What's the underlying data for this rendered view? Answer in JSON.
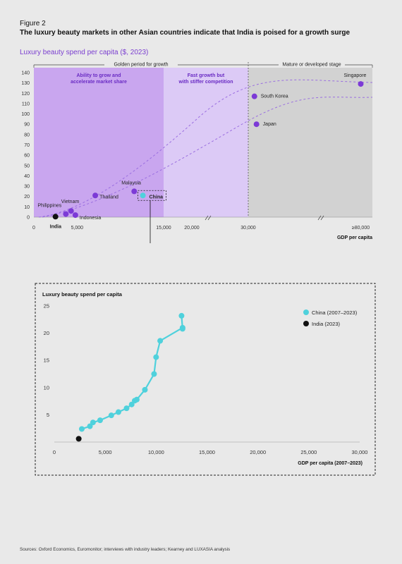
{
  "figure_label": "Figure 2",
  "figure_title": "The luxury beauty markets in other Asian countries indicate that India is poised for a growth surge",
  "chart1_subtitle": "Luxury beauty spend per capita ($, 2023)",
  "source": "Sources: Oxford Economics, Euromonitor; interviews with industry leaders; Kearney and LUXASIA analysis",
  "colors": {
    "purple": "#7c3ad6",
    "zone_dark": "#c9a6ef",
    "zone_light": "#dccaf6",
    "zone_grey": "#d2d2d2",
    "cyan": "#4fd1dc",
    "black": "#111111"
  },
  "chart_data": [
    {
      "type": "scatter",
      "title": "Luxury beauty spend per capita ($, 2023)",
      "xlabel": "GDP per capita",
      "ylabel": "",
      "ylim": [
        0,
        140
      ],
      "x_ticks": [
        "0",
        "5,000",
        "15,000",
        "20,000",
        "30,000",
        "≥80,000"
      ],
      "y_ticks": [
        0,
        10,
        20,
        30,
        40,
        50,
        60,
        70,
        80,
        90,
        100,
        110,
        120,
        130,
        140
      ],
      "zones": [
        {
          "header": "Golden period for growth",
          "label": "Ability to grow and accelerate market share"
        },
        {
          "header": "",
          "label": "Fast growth but with stiffer competition"
        },
        {
          "header": "Mature or developed stage",
          "label": ""
        }
      ],
      "points": [
        {
          "label": "India",
          "x": 2500,
          "y": 0.5,
          "color": "black"
        },
        {
          "label": "Philippines",
          "x": 3700,
          "y": 3,
          "color": "purple"
        },
        {
          "label": "Vietnam",
          "x": 4300,
          "y": 6,
          "color": "purple"
        },
        {
          "label": "Indonesia",
          "x": 4800,
          "y": 2,
          "color": "purple"
        },
        {
          "label": "Thailand",
          "x": 7100,
          "y": 21,
          "color": "purple"
        },
        {
          "label": "Malaysia",
          "x": 11600,
          "y": 25,
          "color": "purple"
        },
        {
          "label": "China",
          "x": 12600,
          "y": 21,
          "color": "cyan"
        },
        {
          "label": "South Korea",
          "x": 33000,
          "y": 117,
          "color": "purple"
        },
        {
          "label": "Japan",
          "x": 34000,
          "y": 90,
          "color": "purple"
        },
        {
          "label": "Singapore",
          "x": 85000,
          "y": 129,
          "color": "purple"
        }
      ]
    },
    {
      "type": "line",
      "title": "Luxury beauty spend per capita",
      "xlabel": "GDP per capita (2007–2023)",
      "ylabel": "",
      "xlim": [
        0,
        30000
      ],
      "ylim": [
        0,
        25
      ],
      "x_ticks": [
        "0",
        "5,000",
        "10,000",
        "15,000",
        "20,000",
        "25,000",
        "30,000"
      ],
      "y_ticks": [
        "5",
        "10",
        "15",
        "20",
        "25"
      ],
      "legend_position": "top-right",
      "series": [
        {
          "name": "China (2007–2023)",
          "color": "cyan",
          "points": [
            [
              2700,
              2.4
            ],
            [
              3500,
              2.9
            ],
            [
              3800,
              3.6
            ],
            [
              4500,
              4.0
            ],
            [
              5600,
              4.9
            ],
            [
              6300,
              5.5
            ],
            [
              7100,
              6.2
            ],
            [
              7600,
              6.9
            ],
            [
              7900,
              7.6
            ],
            [
              8100,
              7.8
            ],
            [
              8900,
              9.6
            ],
            [
              9800,
              12.5
            ],
            [
              10000,
              15.6
            ],
            [
              10400,
              18.6
            ],
            [
              12600,
              21.0
            ],
            [
              12600,
              20.8
            ],
            [
              12500,
              23.2
            ]
          ]
        },
        {
          "name": "India (2023)",
          "color": "black",
          "points": [
            [
              2400,
              0.6
            ]
          ]
        }
      ]
    }
  ]
}
